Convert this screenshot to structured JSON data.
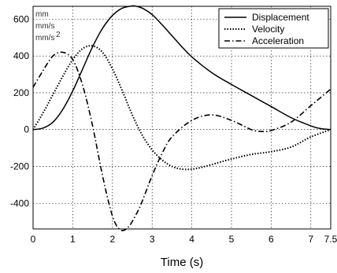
{
  "chart_data": {
    "type": "line",
    "title": "",
    "xlabel": "Time (s)",
    "ylabel": "",
    "xlim": [
      0,
      7.5
    ],
    "ylim": [
      -540,
      670
    ],
    "grid": true,
    "grid_style": "dotted",
    "legend_position": "top-right",
    "x_ticks": [
      0,
      1,
      2,
      3,
      4,
      5,
      6,
      7,
      7.5
    ],
    "x_tick_labels": [
      "0",
      "1",
      "2",
      "3",
      "4",
      "5",
      "6",
      "7",
      "7.5"
    ],
    "y_ticks": [
      -400,
      -200,
      0,
      200,
      400,
      600
    ],
    "y_tick_labels": [
      "-400",
      "-200",
      "0",
      "200",
      "400",
      "600"
    ],
    "y_units": [
      "mm",
      "mm/s",
      "mm/s",
      "2"
    ],
    "series": [
      {
        "name": "Displacement",
        "line_style": "solid",
        "x": [
          0,
          0.25,
          0.5,
          0.75,
          1.0,
          1.25,
          1.5,
          1.75,
          2.0,
          2.25,
          2.5,
          2.6,
          2.75,
          3.0,
          3.25,
          3.5,
          3.75,
          4.0,
          4.5,
          5.0,
          5.5,
          6.0,
          6.5,
          7.0,
          7.25,
          7.5
        ],
        "y": [
          0,
          8,
          40,
          110,
          210,
          330,
          450,
          550,
          620,
          660,
          672,
          670,
          660,
          625,
          570,
          510,
          450,
          395,
          310,
          245,
          185,
          125,
          65,
          20,
          5,
          0
        ]
      },
      {
        "name": "Velocity",
        "line_style": "dotted",
        "x": [
          0,
          0.25,
          0.5,
          0.75,
          1.0,
          1.25,
          1.5,
          1.75,
          2.0,
          2.25,
          2.5,
          2.75,
          3.0,
          3.25,
          3.5,
          3.75,
          4.0,
          4.25,
          4.5,
          5.0,
          5.5,
          6.0,
          6.5,
          7.0,
          7.5
        ],
        "y": [
          0,
          90,
          190,
          290,
          380,
          440,
          455,
          420,
          330,
          210,
          80,
          -30,
          -110,
          -165,
          -200,
          -215,
          -215,
          -205,
          -190,
          -160,
          -135,
          -120,
          -95,
          -40,
          0
        ]
      },
      {
        "name": "Acceleration",
        "line_style": "dashdot",
        "x": [
          0,
          0.25,
          0.5,
          0.75,
          1.0,
          1.25,
          1.5,
          1.75,
          2.0,
          2.2,
          2.4,
          2.6,
          2.75,
          3.0,
          3.25,
          3.5,
          4.0,
          4.5,
          5.0,
          5.5,
          5.75,
          6.0,
          6.5,
          7.0,
          7.5
        ],
        "y": [
          230,
          320,
          400,
          420,
          380,
          240,
          20,
          -250,
          -470,
          -545,
          -530,
          -460,
          -390,
          -250,
          -130,
          -40,
          50,
          80,
          50,
          0,
          -10,
          -5,
          40,
          130,
          220
        ]
      }
    ]
  }
}
